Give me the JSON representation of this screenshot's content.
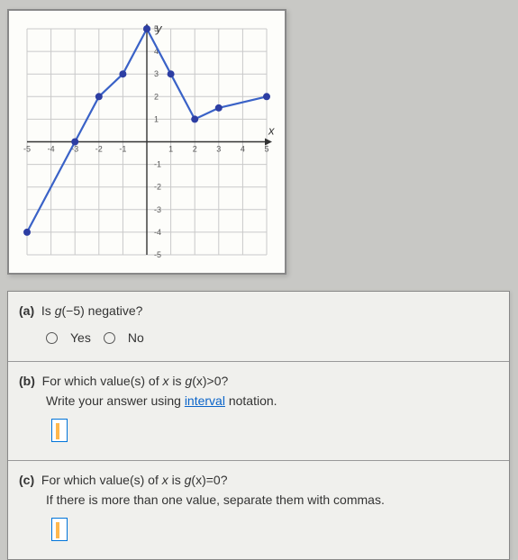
{
  "graph": {
    "type": "line",
    "xlim": [
      -5,
      5
    ],
    "ylim": [
      -5,
      5
    ],
    "xtick_step": 1,
    "ytick_step": 1,
    "grid_color": "#c9c9c9",
    "axis_color": "#333333",
    "background_color": "#fdfdfa",
    "line_color": "#3a62c7",
    "line_width": 2.2,
    "marker_color": "#2d3ea3",
    "marker_radius": 4,
    "x_axis_label": "x",
    "y_axis_label": "y",
    "label_fontsize": 13,
    "tick_fontsize": 9,
    "points": [
      {
        "x": -5,
        "y": -4
      },
      {
        "x": -3,
        "y": 0
      },
      {
        "x": -2,
        "y": 2
      },
      {
        "x": -1,
        "y": 3
      },
      {
        "x": 0,
        "y": 5
      },
      {
        "x": 1,
        "y": 3
      },
      {
        "x": 2,
        "y": 1
      },
      {
        "x": 3,
        "y": 1.5
      },
      {
        "x": 5,
        "y": 2
      }
    ],
    "x_ticks_left": [
      "-5",
      "-4",
      "-3",
      "-2",
      "-1"
    ],
    "x_ticks_right": [
      "1",
      "2",
      "3",
      "4",
      "5"
    ],
    "y_ticks_up": [
      "1",
      "2",
      "3",
      "4",
      "5"
    ],
    "y_ticks_down": [
      "-1",
      "-2",
      "-3",
      "-4",
      "-5"
    ]
  },
  "questions": {
    "a": {
      "label": "(a)",
      "text_prefix": "Is ",
      "func": "g",
      "arg": "(−5)",
      "text_suffix": " negative?",
      "opt_yes": "Yes",
      "opt_no": "No"
    },
    "b": {
      "label": "(b)",
      "text_prefix": "For which value(s) of ",
      "var": "x",
      "text_mid": " is ",
      "func": "g",
      "argvar": "(x)",
      "rel": ">0?",
      "instruction_prefix": "Write your answer using ",
      "interval_word": "interval",
      "instruction_suffix": " notation."
    },
    "c": {
      "label": "(c)",
      "text_prefix": "For which value(s) of ",
      "var": "x",
      "text_mid": " is ",
      "func": "g",
      "argvar": "(x)",
      "rel": "=0?",
      "instruction": "If there is more than one value, separate them with commas."
    }
  }
}
